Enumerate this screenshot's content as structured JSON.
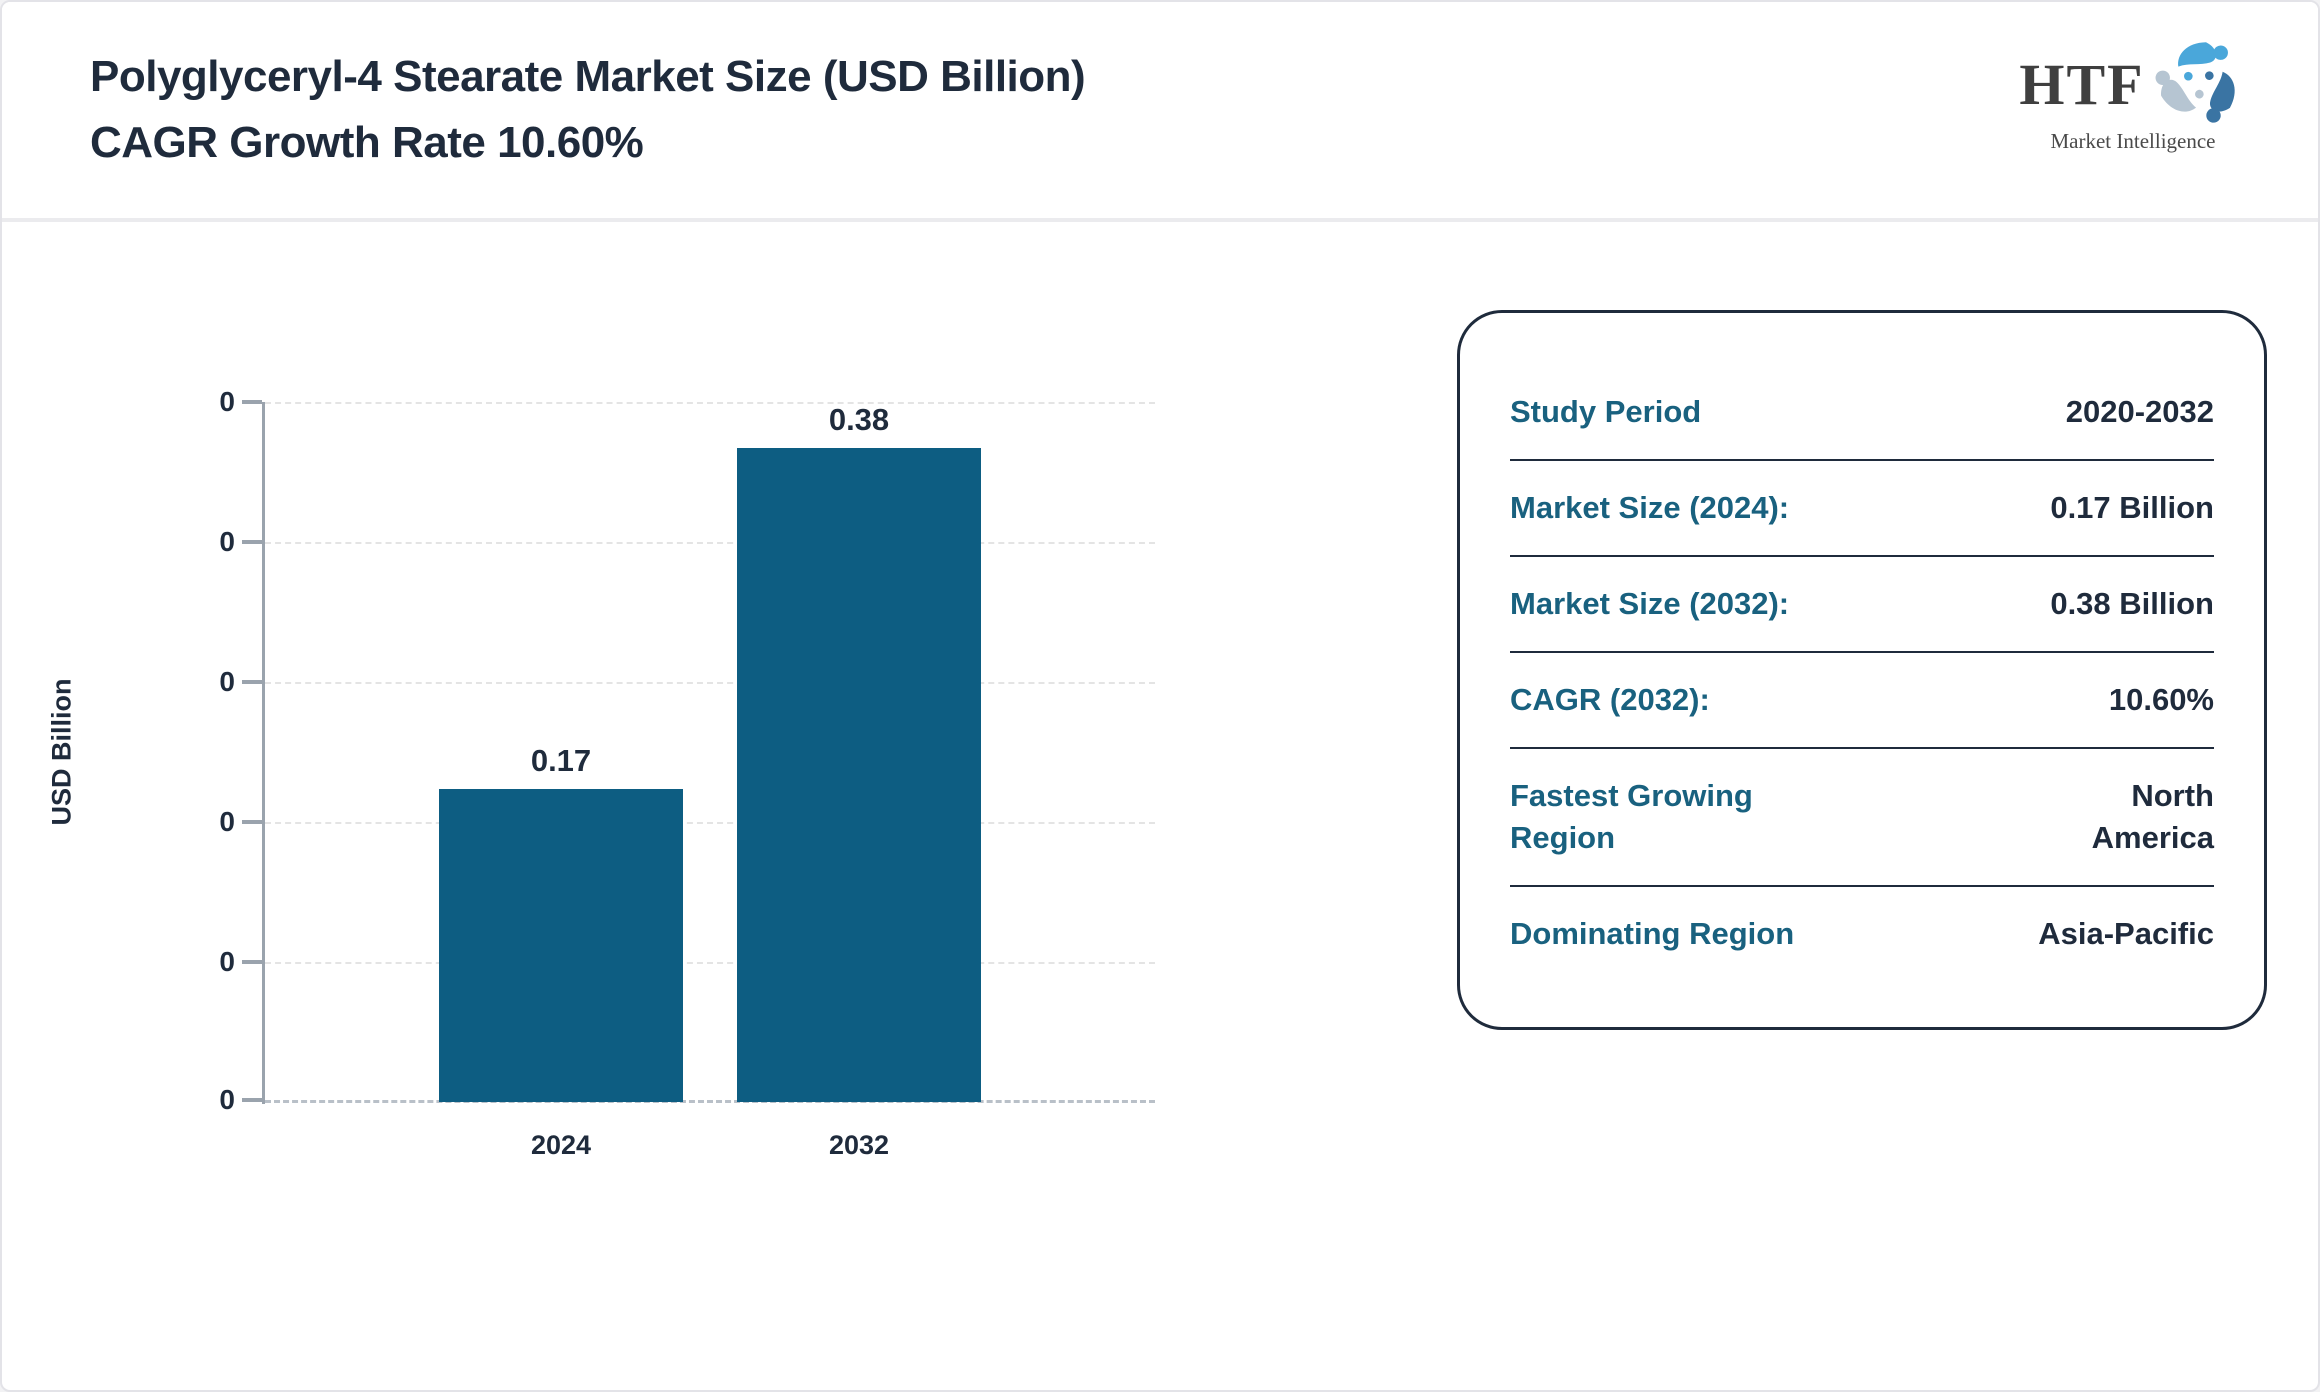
{
  "header": {
    "title": "Polyglyceryl-4 Stearate Market Size (USD Billion) CAGR Growth Rate 10.60%"
  },
  "logo": {
    "name": "HTF",
    "subtitle": "Market Intelligence",
    "colors": {
      "figure_blue": "#4aa7da",
      "figure_steel": "#3a74a3",
      "figure_gray": "#b6c5d2"
    }
  },
  "chart_data": {
    "type": "bar",
    "categories": [
      "2024",
      "2032"
    ],
    "values": [
      0.17,
      0.38
    ],
    "bar_labels": [
      "0.17",
      "0.38"
    ],
    "title": "",
    "xlabel": "",
    "ylabel": "USD Billion",
    "ylim": [
      0,
      0.38
    ],
    "y_tick_labels": [
      "0",
      "0",
      "0",
      "0",
      "0",
      "0"
    ],
    "grid": "horizontal dashed",
    "legend": "none",
    "bar_color": "#0d5d82"
  },
  "info_panel": {
    "rows": [
      {
        "label": "Study Period",
        "value": "2020-2032"
      },
      {
        "label": "Market Size (2024):",
        "value": "0.17 Billion"
      },
      {
        "label": "Market Size (2032):",
        "value": "0.38 Billion"
      },
      {
        "label": "CAGR (2032):",
        "value": "10.60%"
      },
      {
        "label": "Fastest Growing Region",
        "value": "North America"
      },
      {
        "label": "Dominating Region",
        "value": "Asia-Pacific"
      }
    ]
  }
}
